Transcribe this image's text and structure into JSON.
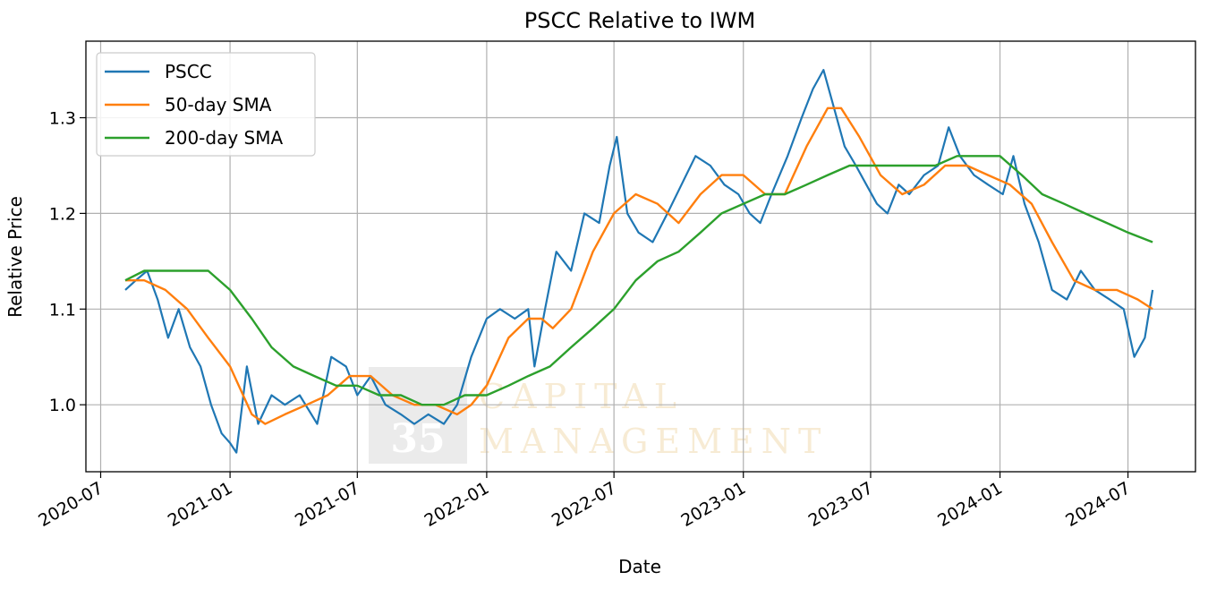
{
  "chart_data": {
    "type": "line",
    "title": "PSCC Relative to IWM",
    "xlabel": "Date",
    "ylabel": "Relative Price",
    "xlim": [
      "2020-06-10",
      "2024-10-05"
    ],
    "ylim": [
      0.93,
      1.38
    ],
    "x_ticks": [
      "2020-07",
      "2021-01",
      "2021-07",
      "2022-01",
      "2022-07",
      "2023-01",
      "2023-07",
      "2024-01",
      "2024-07"
    ],
    "y_ticks": [
      1.0,
      1.1,
      1.2,
      1.3
    ],
    "y_tick_labels": [
      "1.0",
      "1.1",
      "1.2",
      "1.3"
    ],
    "grid": true,
    "legend_position": "top-left",
    "watermark": {
      "number": "35",
      "line1": "CAPITAL",
      "line2": "MANAGEMENT"
    },
    "series": [
      {
        "name": "PSCC",
        "color": "#1f77b4",
        "points": [
          [
            "2020-08-05",
            1.12
          ],
          [
            "2020-08-20",
            1.13
          ],
          [
            "2020-09-05",
            1.14
          ],
          [
            "2020-09-20",
            1.11
          ],
          [
            "2020-10-05",
            1.07
          ],
          [
            "2020-10-20",
            1.1
          ],
          [
            "2020-11-05",
            1.06
          ],
          [
            "2020-11-20",
            1.04
          ],
          [
            "2020-12-05",
            1.0
          ],
          [
            "2020-12-20",
            0.97
          ],
          [
            "2021-01-01",
            0.96
          ],
          [
            "2021-01-10",
            0.95
          ],
          [
            "2021-01-25",
            1.04
          ],
          [
            "2021-02-10",
            0.98
          ],
          [
            "2021-03-01",
            1.01
          ],
          [
            "2021-03-20",
            1.0
          ],
          [
            "2021-04-10",
            1.01
          ],
          [
            "2021-05-05",
            0.98
          ],
          [
            "2021-05-25",
            1.05
          ],
          [
            "2021-06-15",
            1.04
          ],
          [
            "2021-07-01",
            1.01
          ],
          [
            "2021-07-20",
            1.03
          ],
          [
            "2021-08-10",
            1.0
          ],
          [
            "2021-09-01",
            0.99
          ],
          [
            "2021-09-20",
            0.98
          ],
          [
            "2021-10-10",
            0.99
          ],
          [
            "2021-11-01",
            0.98
          ],
          [
            "2021-11-20",
            1.0
          ],
          [
            "2021-12-10",
            1.05
          ],
          [
            "2022-01-01",
            1.09
          ],
          [
            "2022-01-20",
            1.1
          ],
          [
            "2022-02-10",
            1.09
          ],
          [
            "2022-03-01",
            1.1
          ],
          [
            "2022-03-10",
            1.04
          ],
          [
            "2022-03-25",
            1.1
          ],
          [
            "2022-04-10",
            1.16
          ],
          [
            "2022-05-01",
            1.14
          ],
          [
            "2022-05-20",
            1.2
          ],
          [
            "2022-06-10",
            1.19
          ],
          [
            "2022-06-25",
            1.25
          ],
          [
            "2022-07-05",
            1.28
          ],
          [
            "2022-07-20",
            1.2
          ],
          [
            "2022-08-05",
            1.18
          ],
          [
            "2022-08-25",
            1.17
          ],
          [
            "2022-09-15",
            1.2
          ],
          [
            "2022-10-05",
            1.23
          ],
          [
            "2022-10-25",
            1.26
          ],
          [
            "2022-11-15",
            1.25
          ],
          [
            "2022-12-05",
            1.23
          ],
          [
            "2022-12-25",
            1.22
          ],
          [
            "2023-01-10",
            1.2
          ],
          [
            "2023-01-25",
            1.19
          ],
          [
            "2023-02-10",
            1.22
          ],
          [
            "2023-03-05",
            1.26
          ],
          [
            "2023-03-25",
            1.3
          ],
          [
            "2023-04-10",
            1.33
          ],
          [
            "2023-04-25",
            1.35
          ],
          [
            "2023-05-10",
            1.31
          ],
          [
            "2023-05-25",
            1.27
          ],
          [
            "2023-06-10",
            1.25
          ],
          [
            "2023-06-25",
            1.23
          ],
          [
            "2023-07-10",
            1.21
          ],
          [
            "2023-07-25",
            1.2
          ],
          [
            "2023-08-10",
            1.23
          ],
          [
            "2023-08-25",
            1.22
          ],
          [
            "2023-09-15",
            1.24
          ],
          [
            "2023-10-05",
            1.25
          ],
          [
            "2023-10-20",
            1.29
          ],
          [
            "2023-11-05",
            1.26
          ],
          [
            "2023-11-25",
            1.24
          ],
          [
            "2023-12-15",
            1.23
          ],
          [
            "2024-01-05",
            1.22
          ],
          [
            "2024-01-20",
            1.26
          ],
          [
            "2024-02-05",
            1.21
          ],
          [
            "2024-02-25",
            1.17
          ],
          [
            "2024-03-15",
            1.12
          ],
          [
            "2024-04-05",
            1.11
          ],
          [
            "2024-04-25",
            1.14
          ],
          [
            "2024-05-15",
            1.12
          ],
          [
            "2024-06-05",
            1.11
          ],
          [
            "2024-06-25",
            1.1
          ],
          [
            "2024-07-10",
            1.05
          ],
          [
            "2024-07-25",
            1.07
          ],
          [
            "2024-08-05",
            1.12
          ]
        ]
      },
      {
        "name": "50-day SMA",
        "color": "#ff7f0e",
        "points": [
          [
            "2020-08-05",
            1.13
          ],
          [
            "2020-09-01",
            1.13
          ],
          [
            "2020-10-01",
            1.12
          ],
          [
            "2020-11-01",
            1.1
          ],
          [
            "2020-12-01",
            1.07
          ],
          [
            "2021-01-01",
            1.04
          ],
          [
            "2021-02-01",
            0.99
          ],
          [
            "2021-02-20",
            0.98
          ],
          [
            "2021-03-20",
            0.99
          ],
          [
            "2021-04-20",
            1.0
          ],
          [
            "2021-05-20",
            1.01
          ],
          [
            "2021-06-20",
            1.03
          ],
          [
            "2021-07-20",
            1.03
          ],
          [
            "2021-08-20",
            1.01
          ],
          [
            "2021-09-20",
            1.0
          ],
          [
            "2021-10-20",
            1.0
          ],
          [
            "2021-11-20",
            0.99
          ],
          [
            "2021-12-10",
            1.0
          ],
          [
            "2022-01-01",
            1.02
          ],
          [
            "2022-02-01",
            1.07
          ],
          [
            "2022-03-01",
            1.09
          ],
          [
            "2022-03-20",
            1.09
          ],
          [
            "2022-04-05",
            1.08
          ],
          [
            "2022-05-01",
            1.1
          ],
          [
            "2022-06-01",
            1.16
          ],
          [
            "2022-07-01",
            1.2
          ],
          [
            "2022-08-01",
            1.22
          ],
          [
            "2022-09-01",
            1.21
          ],
          [
            "2022-10-01",
            1.19
          ],
          [
            "2022-11-01",
            1.22
          ],
          [
            "2022-12-01",
            1.24
          ],
          [
            "2023-01-01",
            1.24
          ],
          [
            "2023-02-01",
            1.22
          ],
          [
            "2023-03-01",
            1.22
          ],
          [
            "2023-04-01",
            1.27
          ],
          [
            "2023-05-01",
            1.31
          ],
          [
            "2023-05-20",
            1.31
          ],
          [
            "2023-06-15",
            1.28
          ],
          [
            "2023-07-15",
            1.24
          ],
          [
            "2023-08-15",
            1.22
          ],
          [
            "2023-09-15",
            1.23
          ],
          [
            "2023-10-15",
            1.25
          ],
          [
            "2023-11-15",
            1.25
          ],
          [
            "2023-12-15",
            1.24
          ],
          [
            "2024-01-15",
            1.23
          ],
          [
            "2024-02-15",
            1.21
          ],
          [
            "2024-03-15",
            1.17
          ],
          [
            "2024-04-15",
            1.13
          ],
          [
            "2024-05-15",
            1.12
          ],
          [
            "2024-06-15",
            1.12
          ],
          [
            "2024-07-15",
            1.11
          ],
          [
            "2024-08-05",
            1.1
          ]
        ]
      },
      {
        "name": "200-day SMA",
        "color": "#2ca02c",
        "points": [
          [
            "2020-08-05",
            1.13
          ],
          [
            "2020-09-01",
            1.14
          ],
          [
            "2020-10-01",
            1.14
          ],
          [
            "2020-11-01",
            1.14
          ],
          [
            "2020-12-01",
            1.14
          ],
          [
            "2021-01-01",
            1.12
          ],
          [
            "2021-02-01",
            1.09
          ],
          [
            "2021-03-01",
            1.06
          ],
          [
            "2021-04-01",
            1.04
          ],
          [
            "2021-05-01",
            1.03
          ],
          [
            "2021-06-01",
            1.02
          ],
          [
            "2021-07-01",
            1.02
          ],
          [
            "2021-08-01",
            1.01
          ],
          [
            "2021-09-01",
            1.01
          ],
          [
            "2021-10-01",
            1.0
          ],
          [
            "2021-11-01",
            1.0
          ],
          [
            "2021-12-01",
            1.01
          ],
          [
            "2022-01-01",
            1.01
          ],
          [
            "2022-02-01",
            1.02
          ],
          [
            "2022-03-01",
            1.03
          ],
          [
            "2022-04-01",
            1.04
          ],
          [
            "2022-05-01",
            1.06
          ],
          [
            "2022-06-01",
            1.08
          ],
          [
            "2022-07-01",
            1.1
          ],
          [
            "2022-08-01",
            1.13
          ],
          [
            "2022-09-01",
            1.15
          ],
          [
            "2022-10-01",
            1.16
          ],
          [
            "2022-11-01",
            1.18
          ],
          [
            "2022-12-01",
            1.2
          ],
          [
            "2023-01-01",
            1.21
          ],
          [
            "2023-02-01",
            1.22
          ],
          [
            "2023-03-01",
            1.22
          ],
          [
            "2023-04-01",
            1.23
          ],
          [
            "2023-05-01",
            1.24
          ],
          [
            "2023-06-01",
            1.25
          ],
          [
            "2023-07-01",
            1.25
          ],
          [
            "2023-08-01",
            1.25
          ],
          [
            "2023-09-01",
            1.25
          ],
          [
            "2023-10-01",
            1.25
          ],
          [
            "2023-11-01",
            1.26
          ],
          [
            "2023-12-01",
            1.26
          ],
          [
            "2024-01-01",
            1.26
          ],
          [
            "2024-02-01",
            1.24
          ],
          [
            "2024-03-01",
            1.22
          ],
          [
            "2024-04-01",
            1.21
          ],
          [
            "2024-05-01",
            1.2
          ],
          [
            "2024-06-01",
            1.19
          ],
          [
            "2024-07-01",
            1.18
          ],
          [
            "2024-08-05",
            1.17
          ]
        ]
      }
    ]
  }
}
